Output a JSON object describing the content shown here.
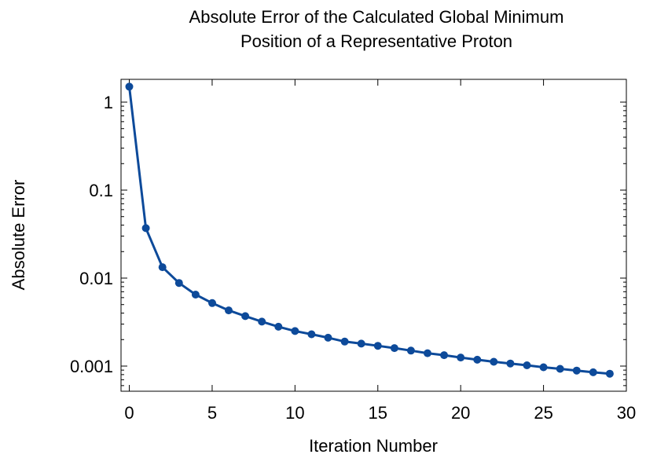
{
  "chart_data": {
    "type": "line",
    "title_lines": [
      "Absolute Error of the Calculated Global Minimum",
      "Position of a Representative Proton"
    ],
    "xlabel": "Iteration Number",
    "ylabel": "Absolute Error",
    "xlim": [
      -0.5,
      30
    ],
    "ylim": [
      0.0005,
      2
    ],
    "y_scale": "log",
    "x_ticks": [
      0,
      5,
      10,
      15,
      20,
      25,
      30
    ],
    "x_tick_labels": [
      "0",
      "5",
      "10",
      "15",
      "20",
      "25",
      "30"
    ],
    "y_ticks": [
      1,
      0.1,
      0.01,
      0.001
    ],
    "y_tick_labels": [
      "1",
      "0.1",
      "0.01",
      "0.001"
    ],
    "grid": false,
    "series": [
      {
        "color": "#0d4a9a",
        "marker": "circle",
        "x": [
          0,
          1,
          2,
          3,
          4,
          5,
          6,
          7,
          8,
          9,
          10,
          11,
          12,
          13,
          14,
          15,
          16,
          17,
          18,
          19,
          20,
          21,
          22,
          23,
          24,
          25,
          26,
          27,
          28,
          29
        ],
        "y": [
          1.5,
          0.037,
          0.0133,
          0.0088,
          0.0065,
          0.0052,
          0.0043,
          0.0037,
          0.0032,
          0.0028,
          0.0025,
          0.0023,
          0.0021,
          0.0019,
          0.0018,
          0.0017,
          0.0016,
          0.0015,
          0.0014,
          0.00133,
          0.00125,
          0.00118,
          0.00112,
          0.00107,
          0.00102,
          0.00097,
          0.00093,
          0.00089,
          0.00085,
          0.00082
        ]
      }
    ]
  }
}
